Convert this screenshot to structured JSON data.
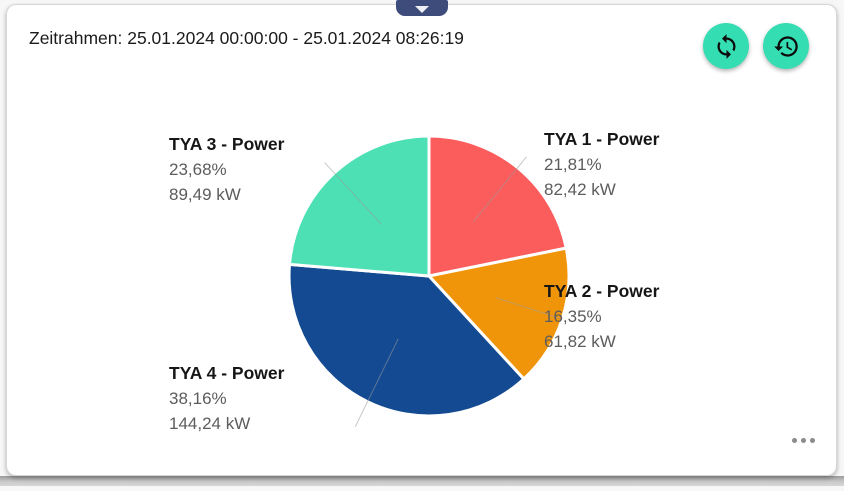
{
  "header": {
    "timeframe": "Zeitrahmen: 25.01.2024 00:00:00 - 25.01.2024 08:26:19"
  },
  "toolbar": {
    "refresh_button": "refresh",
    "history_button": "history"
  },
  "collapse_tab": {
    "icon": "chevron-down"
  },
  "footer": {
    "more_options": "ellipsis"
  },
  "colors": {
    "accent_teal": "#35ddb3",
    "tab_navy": "#3e4c7c",
    "card_background": "#ffffff",
    "label_line_gray": "#9a9a9a"
  },
  "chart_data": {
    "type": "pie",
    "title": "",
    "unit": "kW",
    "legend_position": "callout-labels",
    "direction": "clockwise",
    "start_angle_deg": 0,
    "center": {
      "x": 422,
      "y": 271,
      "radius": 140
    },
    "series": [
      {
        "id": "tya-1-power",
        "name": "TYA 1 - Power",
        "percent": 21.81,
        "value_kw": 82.42,
        "percent_label": "21,81%",
        "value_label": "82,42 kW",
        "color": "#fb5c5c"
      },
      {
        "id": "tya-2-power",
        "name": "TYA 2 - Power",
        "percent": 16.35,
        "value_kw": 61.82,
        "percent_label": "16,35%",
        "value_label": "61,82 kW",
        "color": "#f09509"
      },
      {
        "id": "tya-4-power",
        "name": "TYA 4 - Power",
        "percent": 38.16,
        "value_kw": 144.24,
        "percent_label": "38,16%",
        "value_label": "144,24 kW",
        "color": "#134a91"
      },
      {
        "id": "tya-3-power",
        "name": "TYA 3 - Power",
        "percent": 23.68,
        "value_kw": 89.49,
        "percent_label": "23,68%",
        "value_label": "89,49 kW",
        "color": "#4ce0b4"
      }
    ]
  }
}
